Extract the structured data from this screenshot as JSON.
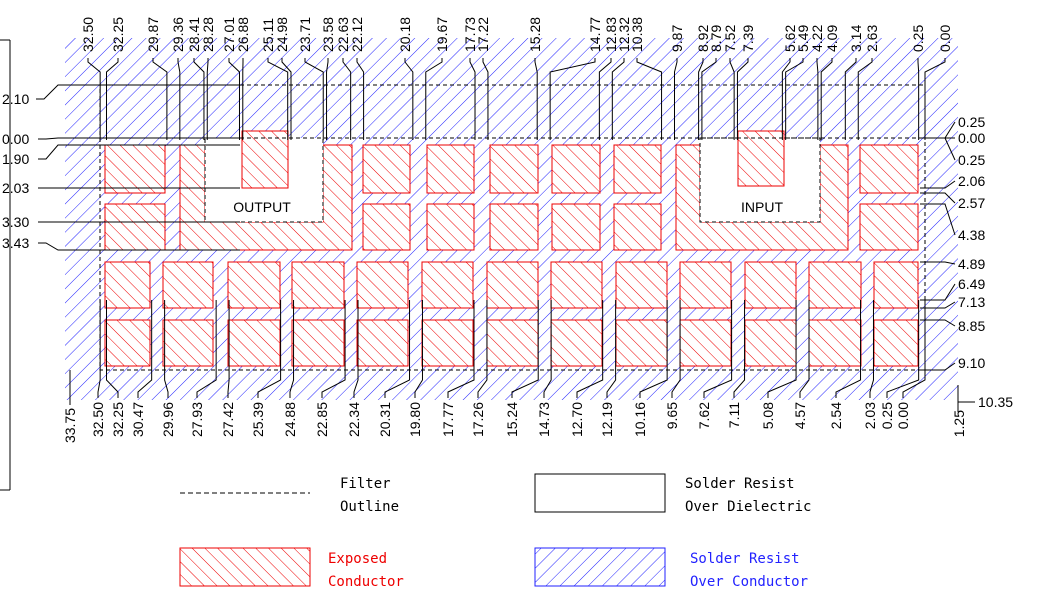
{
  "top_labels": [
    "32.50",
    "32.25",
    "29.87",
    "29.36",
    "28.41",
    "28.28",
    "27.01",
    "26.88",
    "25.11",
    "24.98",
    "23.71",
    "23.58",
    "22.63",
    "22.12",
    "20.18",
    "19.67",
    "17.73",
    "17.22",
    "15.28",
    "14.77",
    "12.83",
    "12.32",
    "10.38",
    "9.87",
    "8.92",
    "8.79",
    "7.52",
    "7.39",
    "5.62",
    "5.49",
    "4.22",
    "4.09",
    "3.14",
    "2.63",
    "0.25",
    "0.00"
  ],
  "bottom_labels": [
    "32.50",
    "32.25",
    "30.47",
    "29.96",
    "27.93",
    "27.42",
    "25.39",
    "24.88",
    "22.85",
    "22.34",
    "20.31",
    "19.80",
    "17.77",
    "17.26",
    "15.24",
    "14.73",
    "12.70",
    "12.19",
    "10.16",
    "9.65",
    "7.62",
    "7.11",
    "5.08",
    "4.57",
    "2.54",
    "2.03",
    "0.25",
    "0.00"
  ],
  "bottom_outer": [
    "33.75",
    "1.25"
  ],
  "left_labels": [
    "2.10",
    "0.00",
    "1.90",
    "2.03",
    "3.30",
    "3.43"
  ],
  "right_labels": [
    "0.25",
    "0.00",
    "0.25",
    "2.06",
    "2.57",
    "4.38",
    "4.89",
    "6.49",
    "7.13",
    "8.85",
    "9.10",
    "10.35"
  ],
  "ports": {
    "output": "OUTPUT",
    "input": "INPUT"
  },
  "legend": [
    {
      "lines": [
        "Filter",
        "Outline"
      ]
    },
    {
      "lines": [
        "Solder Resist",
        "Over Dielectric"
      ]
    },
    {
      "lines": [
        "Exposed",
        "Conductor"
      ]
    },
    {
      "lines": [
        "Solder Resist",
        "Over Conductor"
      ]
    }
  ]
}
